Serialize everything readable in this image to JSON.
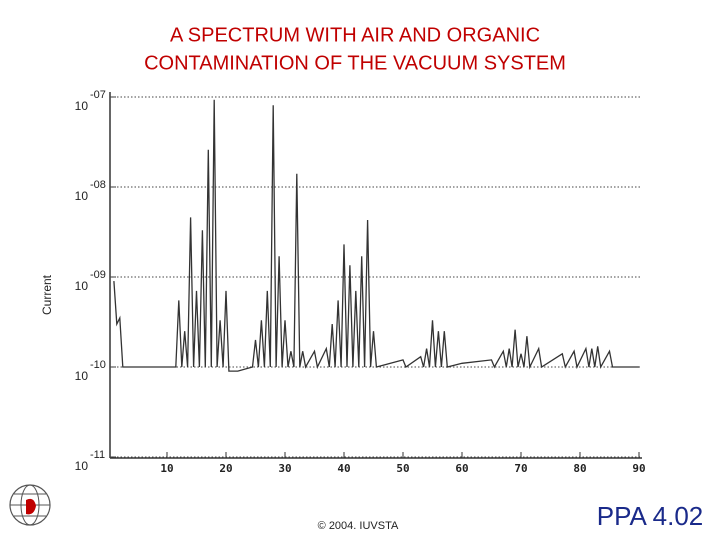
{
  "chart_data": {
    "type": "line",
    "title": [
      "A SPECTRUM WITH AIR AND ORGANIC",
      "CONTAMINATION OF THE VACUUM SYSTEM"
    ],
    "ylabel": "Current",
    "x": [
      1,
      1.5,
      2,
      2.5,
      11.5,
      12,
      12.5,
      13,
      13.5,
      14,
      14.5,
      15,
      15.5,
      16,
      16.5,
      17,
      17.5,
      18,
      18.5,
      19,
      19.5,
      20,
      20.5,
      22,
      24.5,
      25,
      25.5,
      26,
      26.5,
      27,
      27.5,
      28,
      28.5,
      29,
      29.5,
      30,
      30.5,
      31,
      31.5,
      32,
      32.5,
      33,
      33.5,
      35,
      35.5,
      37,
      37.5,
      38,
      38.5,
      39,
      39.5,
      40,
      40.5,
      41,
      41.5,
      42,
      42.5,
      43,
      43.5,
      44,
      44.5,
      45,
      45.5,
      50,
      50.5,
      53,
      53.5,
      54,
      54.5,
      55,
      55.5,
      56,
      56.5,
      57,
      57.5,
      60,
      65,
      65.5,
      67,
      67.5,
      68,
      68.5,
      69,
      69.5,
      70,
      70.5,
      71,
      71.5,
      73,
      73.5,
      77,
      77.5,
      79,
      79.5,
      81,
      81.5,
      82,
      82.5,
      83,
      83.5,
      85,
      85.5,
      90
    ],
    "values": [
      9e-10,
      3e-10,
      3.5e-10,
      1e-10,
      1e-10,
      5.5e-10,
      1e-10,
      2.5e-10,
      1e-10,
      4.6e-09,
      1e-10,
      7e-10,
      1e-10,
      3.3e-09,
      1e-10,
      2.6e-08,
      1e-10,
      9.3e-08,
      1e-10,
      3.3e-10,
      1e-10,
      7e-10,
      9e-11,
      9e-11,
      1e-10,
      2e-10,
      1e-10,
      3.3e-10,
      1e-10,
      7e-10,
      1e-10,
      8.1e-08,
      1e-10,
      1.7e-09,
      1e-10,
      3.3e-10,
      1e-10,
      1.5e-10,
      1e-10,
      1.4e-08,
      1e-10,
      1.5e-10,
      1e-10,
      1.5e-10,
      1e-10,
      1.6e-10,
      1e-10,
      3e-10,
      1e-10,
      5.5e-10,
      1e-10,
      2.3e-09,
      1e-10,
      1.35e-09,
      1e-10,
      7e-10,
      1e-10,
      1.7e-09,
      1e-10,
      4.3e-09,
      1e-10,
      2.5e-10,
      1e-10,
      1.2e-10,
      1e-10,
      1.3e-10,
      1e-10,
      1.6e-10,
      1e-10,
      3.3e-10,
      1e-10,
      2.5e-10,
      1e-10,
      2.5e-10,
      1e-10,
      1.1e-10,
      1.2e-10,
      1e-10,
      1.5e-10,
      1e-10,
      1.6e-10,
      1e-10,
      2.6e-10,
      1e-10,
      1.4e-10,
      1e-10,
      2.2e-10,
      1e-10,
      1.6e-10,
      1e-10,
      1.4e-10,
      1e-10,
      1.5e-10,
      1e-10,
      1.6e-10,
      1e-10,
      1.6e-10,
      1e-10,
      1.7e-10,
      1e-10,
      1.5e-10,
      1e-10,
      1e-10
    ],
    "color": "#333333",
    "xlim": [
      0,
      90
    ],
    "xticks": [
      10,
      20,
      30,
      40,
      50,
      60,
      70,
      80,
      90
    ],
    "ylim": [
      1e-11,
      1e-07
    ],
    "log_y": true,
    "grid": true,
    "yticks": [
      {
        "value": 1e-11,
        "label": "10",
        "exponent": "-11"
      },
      {
        "value": 1e-10,
        "label": "10",
        "exponent": "-10"
      },
      {
        "value": 1e-09,
        "label": "10",
        "exponent": "-09"
      },
      {
        "value": 1e-08,
        "label": "10",
        "exponent": "-08"
      },
      {
        "value": 1e-07,
        "label": "10",
        "exponent": "-07"
      }
    ]
  },
  "footer": {
    "copyright": "© 2004. IUVSTA",
    "slide_id": "PPA 4.02"
  }
}
